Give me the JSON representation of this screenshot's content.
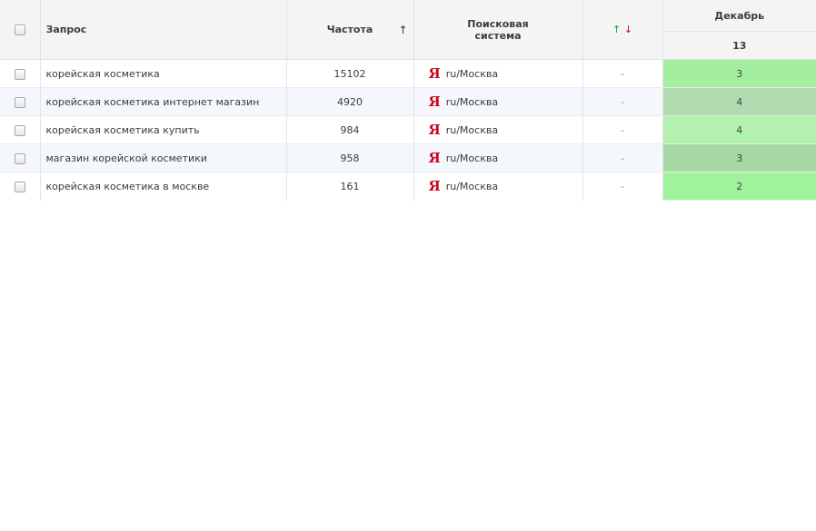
{
  "header": {
    "query": "Запрос",
    "frequency": "Частота",
    "frequency_sort_icon": "↑",
    "search_engine_line1": "Поисковая",
    "search_engine_line2": "система",
    "dynamics_up": "↑",
    "dynamics_down": "↓",
    "month": "Декабрь",
    "day": "13"
  },
  "rows": [
    {
      "query": "корейская косметика",
      "frequency": "15102",
      "engine_icon": "Я",
      "region": "ru/Москва",
      "dynamics": "-",
      "position": "3",
      "position_color": "#a4ef9f"
    },
    {
      "query": "корейская косметика интернет магазин",
      "frequency": "4920",
      "engine_icon": "Я",
      "region": "ru/Москва",
      "dynamics": "-",
      "position": "4",
      "position_color": "#b1dcb1"
    },
    {
      "query": "корейская косметика купить",
      "frequency": "984",
      "engine_icon": "Я",
      "region": "ru/Москва",
      "dynamics": "-",
      "position": "4",
      "position_color": "#b3f2ae"
    },
    {
      "query": "магазин корейской косметики",
      "frequency": "958",
      "engine_icon": "Я",
      "region": "ru/Москва",
      "dynamics": "-",
      "position": "3",
      "position_color": "#a6d8a4"
    },
    {
      "query": "корейская косметика в москве",
      "frequency": "161",
      "engine_icon": "Я",
      "region": "ru/Москва",
      "dynamics": "-",
      "position": "2",
      "position_color": "#a1f29c"
    }
  ]
}
